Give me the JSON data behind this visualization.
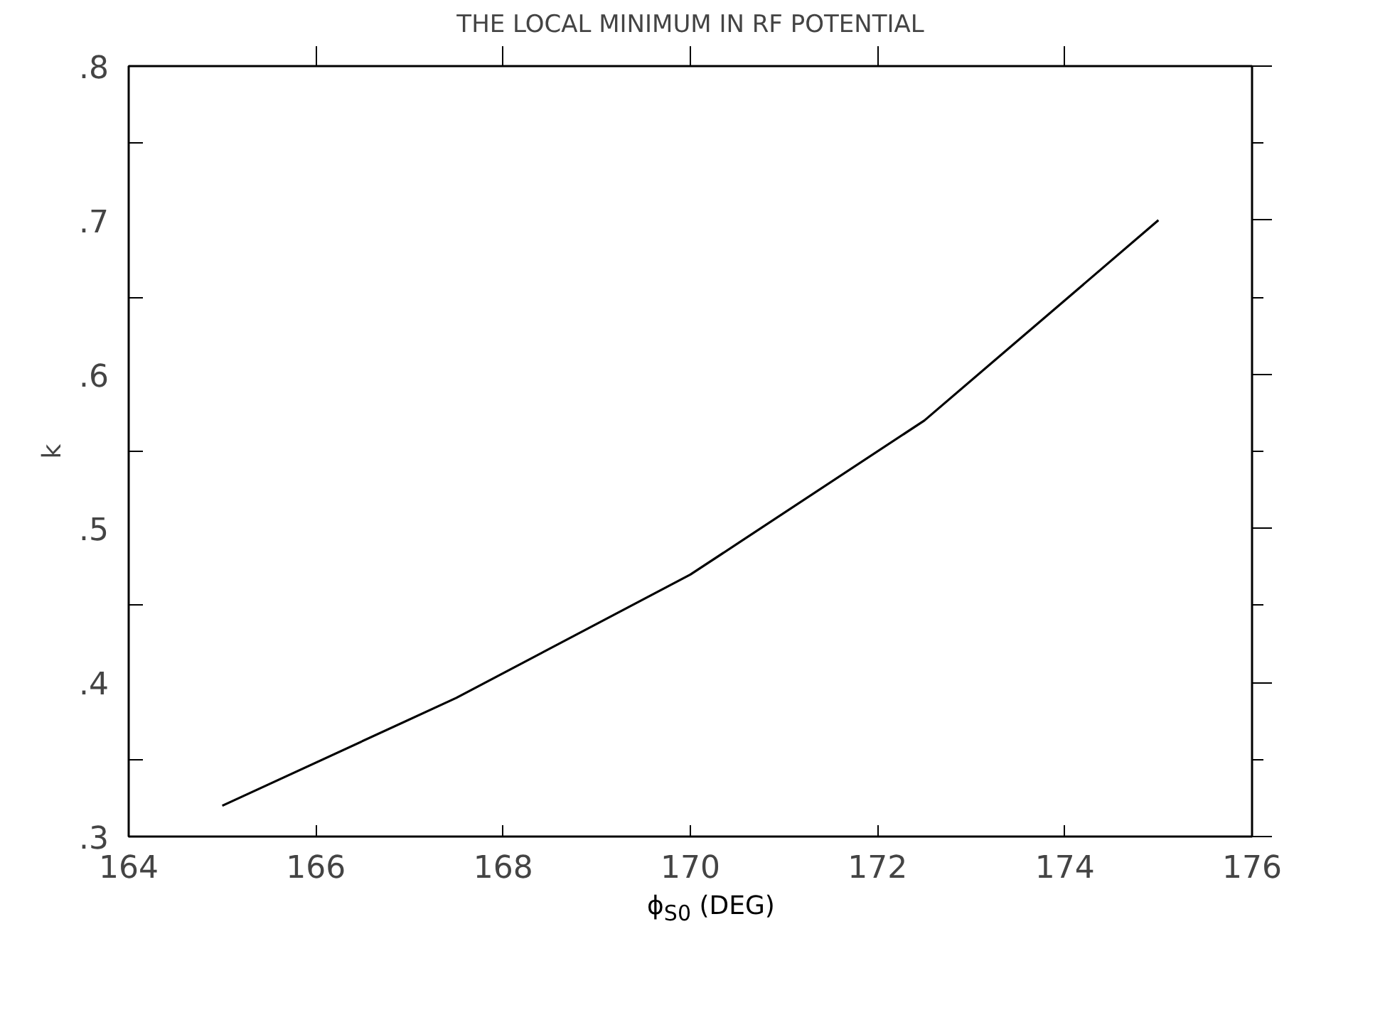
{
  "chart_data": {
    "type": "line",
    "title": "THE LOCAL MINIMUM IN RF POTENTIAL",
    "xlabel": "ϕ$_{S0}$ (DEG)",
    "ylabel": "k",
    "x": [
      165,
      167.5,
      170,
      172.5,
      175
    ],
    "series": [
      {
        "color": "#000000",
        "values": [
          0.32,
          0.39,
          0.47,
          0.57,
          0.7
        ]
      }
    ],
    "xlim": [
      164,
      176
    ],
    "ylim": [
      0.3,
      0.8
    ],
    "xticks": [
      164,
      166,
      168,
      170,
      172,
      174,
      176
    ],
    "yticks": [
      {
        "value": 0.3,
        "label": ".3"
      },
      {
        "value": 0.4,
        "label": ".4"
      },
      {
        "value": 0.5,
        "label": ".5"
      },
      {
        "value": 0.6,
        "label": ".6"
      },
      {
        "value": 0.7,
        "label": ".7"
      },
      {
        "value": 0.8,
        "label": ".8"
      }
    ],
    "grid": false,
    "marker": "none",
    "line_style": "solid"
  }
}
